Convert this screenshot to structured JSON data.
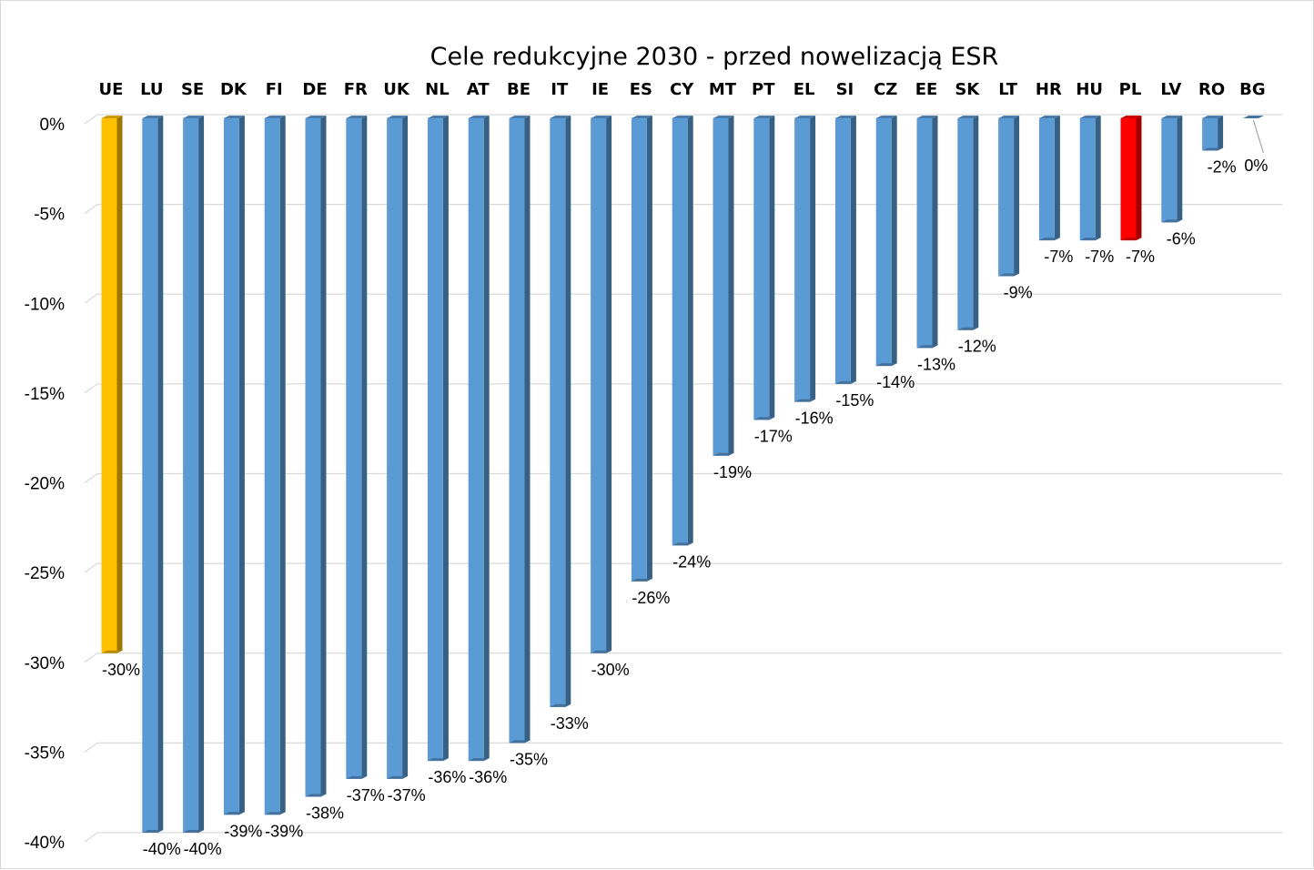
{
  "chart_data": {
    "type": "bar",
    "title": "Cele redukcyjne 2030 - przed nowelizacją ESR",
    "xlabel": "",
    "ylabel": "",
    "categories": [
      "UE",
      "LU",
      "SE",
      "DK",
      "FI",
      "DE",
      "FR",
      "UK",
      "NL",
      "AT",
      "BE",
      "IT",
      "IE",
      "ES",
      "CY",
      "MT",
      "PT",
      "EL",
      "SI",
      "CZ",
      "EE",
      "SK",
      "LT",
      "HR",
      "HU",
      "PL",
      "LV",
      "RO",
      "BG"
    ],
    "values": [
      -30,
      -40,
      -40,
      -39,
      -39,
      -38,
      -37,
      -37,
      -36,
      -36,
      -35,
      -33,
      -30,
      -26,
      -24,
      -19,
      -17,
      -16,
      -15,
      -14,
      -13,
      -12,
      -9,
      -7,
      -7,
      -7,
      -6,
      -2,
      0
    ],
    "data_labels": [
      "-30%",
      "-40%",
      "-40%",
      "-39%",
      "-39%",
      "-38%",
      "-37%",
      "-37%",
      "-36%",
      "-36%",
      "-35%",
      "-33%",
      "-30%",
      "-26%",
      "-24%",
      "-19%",
      "-17%",
      "-16%",
      "-15%",
      "-14%",
      "-13%",
      "-12%",
      "-9%",
      "-7%",
      "-7%",
      "-7%",
      "-6%",
      "-2%",
      "0%"
    ],
    "ylim": [
      -40,
      0
    ],
    "yticks": [
      0,
      -5,
      -10,
      -15,
      -20,
      -25,
      -30,
      -35,
      -40
    ],
    "ytick_labels": [
      "0%",
      "-5%",
      "-10%",
      "-15%",
      "-20%",
      "-25%",
      "-30%",
      "-35%",
      "-40%"
    ],
    "grid": true,
    "category_axis_position": "top",
    "legend": "none",
    "colors": {
      "default": "#5b9bd5",
      "highlight_eu": "#ffc000",
      "highlight_pl": "#ff0000",
      "grid": "#d9d9d9"
    },
    "bar_color_keys": [
      "highlight_eu",
      "default",
      "default",
      "default",
      "default",
      "default",
      "default",
      "default",
      "default",
      "default",
      "default",
      "default",
      "default",
      "default",
      "default",
      "default",
      "default",
      "default",
      "default",
      "default",
      "default",
      "default",
      "default",
      "default",
      "default",
      "highlight_pl",
      "default",
      "default",
      "default"
    ]
  }
}
